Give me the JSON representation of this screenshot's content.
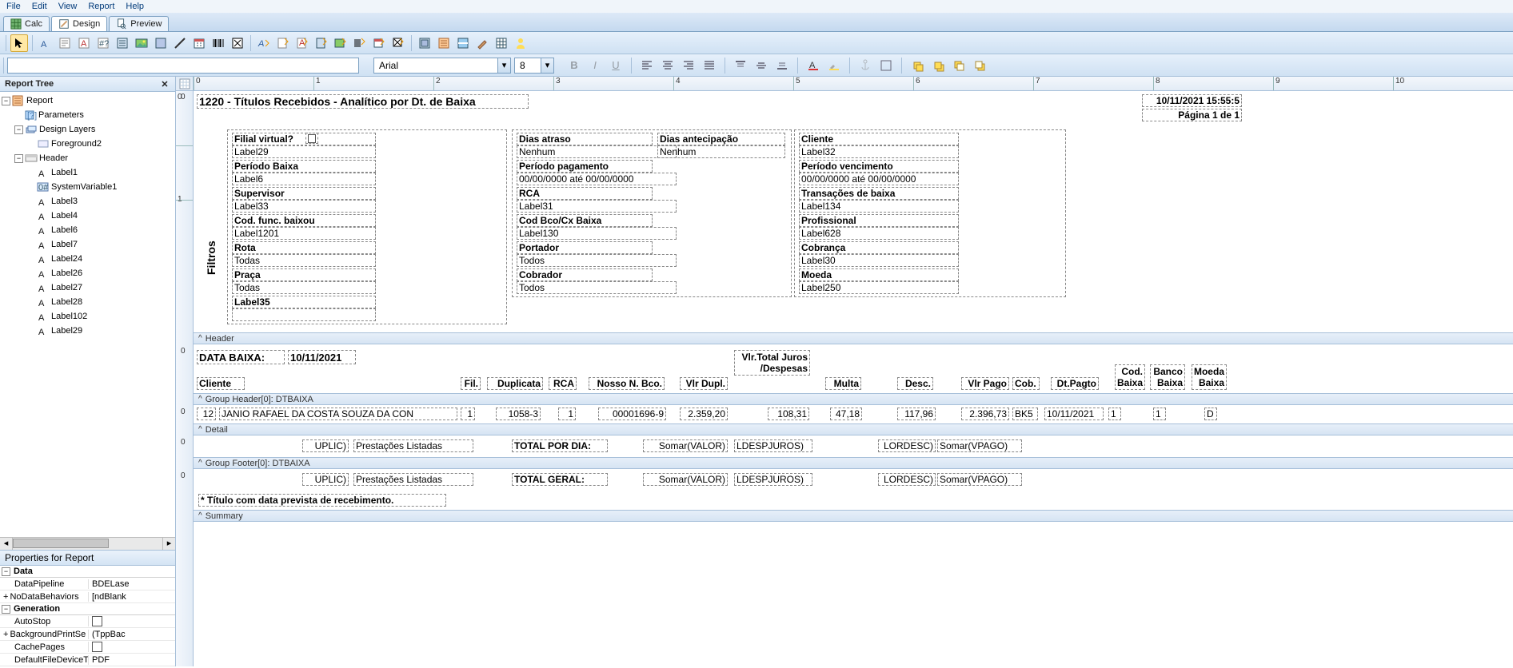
{
  "menu": {
    "items": [
      "File",
      "Edit",
      "View",
      "Report",
      "Help"
    ]
  },
  "tabs": {
    "calc": "Calc",
    "design": "Design",
    "preview": "Preview",
    "active_index": 1
  },
  "font": {
    "family": "Arial",
    "size": "8"
  },
  "panels": {
    "tree_title": "Report Tree",
    "props_title": "Properties for Report"
  },
  "tree": {
    "root": "Report",
    "parameters": "Parameters",
    "design_layers": "Design Layers",
    "foreground": "Foreground2",
    "header": "Header",
    "header_children": [
      "Label1",
      "SystemVariable1",
      "Label3",
      "Label4",
      "Label6",
      "Label7",
      "Label24",
      "Label26",
      "Label27",
      "Label28",
      "Label102",
      "Label29"
    ]
  },
  "props": {
    "data_section": "Data",
    "data_rows": [
      {
        "k": "DataPipeline",
        "v": "BDELase"
      },
      {
        "k": "NoDataBehaviors",
        "v": "[ndBlank"
      }
    ],
    "gen_section": "Generation",
    "gen_rows": [
      {
        "k": "AutoStop",
        "v": "",
        "chk": true
      },
      {
        "k": "BackgroundPrintSe",
        "v": "(TppBac"
      },
      {
        "k": "CachePages",
        "v": "",
        "chk": true
      },
      {
        "k": "DefaultFileDeviceT",
        "v": "PDF"
      }
    ]
  },
  "ruler": {
    "h": [
      "0",
      "1",
      "2",
      "3",
      "4",
      "5",
      "6",
      "7",
      "8",
      "9",
      "10"
    ]
  },
  "report": {
    "title": "1220 - Títulos Recebidos - Analítico por Dt. de Baixa",
    "timestamp": "10/11/2021 15:55:5",
    "page_label": "Página 1 de 1",
    "filtros_label": "Filtros",
    "filter_rows": [
      {
        "c1b": "Filial virtual?",
        "c1": "Label29",
        "c2b": "Dias atraso",
        "c2": "Nenhum",
        "c2xb": "Dias antecipação",
        "c2x": "Nenhum",
        "c3b": "Cliente",
        "c3": "Label32"
      },
      {
        "c1b": "Período Baixa",
        "c1": "Label6",
        "c2b": "Período pagamento",
        "c2": "00/00/0000  até  00/00/0000",
        "c3b": "Período vencimento",
        "c3": "00/00/0000  até  00/00/0000"
      },
      {
        "c1b": "Supervisor",
        "c1": "Label33",
        "c2b": "RCA",
        "c2": "Label31",
        "c3b": "Transações de baixa",
        "c3": "Label134"
      },
      {
        "c1b": "Cod. func. baixou",
        "c1": "Label1201",
        "c2b": "Cod Bco/Cx Baixa",
        "c2": "Label130",
        "c3b": "Profissional",
        "c3": "Label628"
      },
      {
        "c1b": "Rota",
        "c1": "Todas",
        "c2b": "Portador",
        "c2": "Todos",
        "c3b": "Cobrança",
        "c3": "Label30"
      },
      {
        "c1b": "Praça",
        "c1": "Todas",
        "c2b": "Cobrador",
        "c2": "Todos",
        "c3b": "Moeda",
        "c3": "Label250"
      },
      {
        "c1b": "Label35",
        "c1": ""
      }
    ],
    "bands": {
      "header": "Header",
      "group_header": "Group Header[0]: DTBAIXA",
      "detail": "Detail",
      "group_footer": "Group Footer[0]: DTBAIXA",
      "summary": "Summary"
    },
    "group": {
      "data_baixa_label": "DATA BAIXA:",
      "data_baixa_value": "10/11/2021",
      "col_vlr_total_juros": "Vlr.Total Juros /Despesas",
      "cols": [
        "Cliente",
        "Fil.",
        "Duplicata",
        "RCA",
        "Nosso N. Bco.",
        "Vlr Dupl.",
        "Multa",
        "Desc.",
        "Vlr Pago",
        "Cob.",
        "Dt.Pagto",
        "Cod. Baixa",
        "Banco Baixa",
        "Moeda Baixa"
      ]
    },
    "detail_row": {
      "cliente_cod": "12",
      "cliente": "JANIO RAFAEL DA COSTA SOUZA DA CON",
      "fil": "1",
      "dup": "1058-3",
      "rca": "1",
      "nosso": "00001696-9",
      "vlr_dupl": "2.359,20",
      "juros": "108,31",
      "multa": "47,18",
      "desc": "117,96",
      "vlr_pago": "2.396,73",
      "cob": "BK5",
      "dt_pagto": "10/11/2021",
      "cod_baixa": "1",
      "banco_baixa": "1",
      "moeda_baixa": "D"
    },
    "footer_day": {
      "uplic": "UPLIC)",
      "prest": "Prestações Listadas",
      "total": "TOTAL POR DIA:",
      "valor": "Somar(VALOR)",
      "despjuros": "LDESPJUROS)",
      "lordesc": "LORDESC)",
      "vpago": "Somar(VPAGO)"
    },
    "footer_geral": {
      "uplic": "UPLIC)",
      "prest": "Prestações Listadas",
      "total": "TOTAL GERAL:",
      "valor": "Somar(VALOR)",
      "despjuros": "LDESPJUROS)",
      "lordesc": "LORDESC)",
      "vpago": "Somar(VPAGO)"
    },
    "footnote": "* Título com data prevista  de recebimento."
  }
}
